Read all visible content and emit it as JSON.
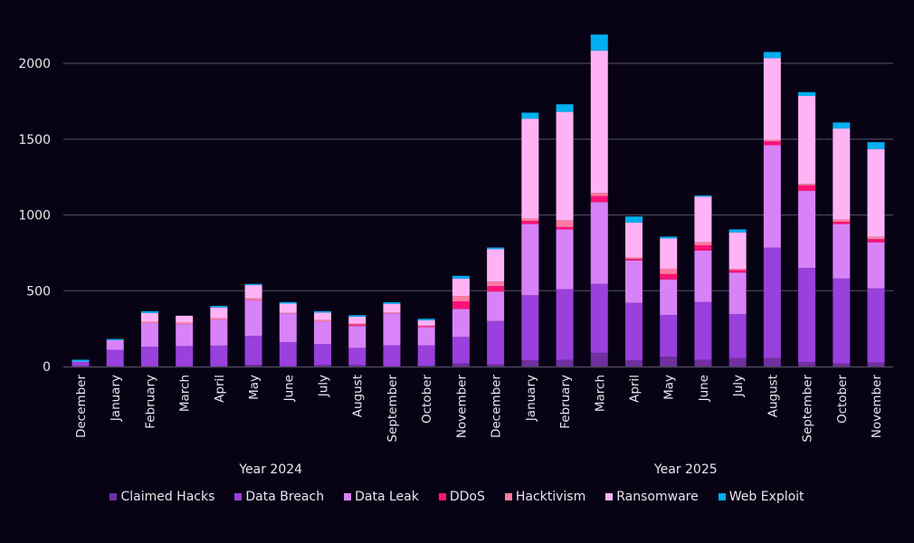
{
  "chart_data": {
    "type": "bar",
    "stacked": true,
    "title": "",
    "xlabel": "",
    "ylabel": "",
    "ylim": [
      0,
      2200
    ],
    "yticks": [
      0,
      500,
      1000,
      1500,
      2000
    ],
    "grid": true,
    "legend_position": "bottom",
    "categories": [
      "December",
      "January",
      "February",
      "March",
      "April",
      "May",
      "June",
      "July",
      "August",
      "September",
      "October",
      "November",
      "December",
      "January",
      "February",
      "March",
      "April",
      "May",
      "June",
      "July",
      "August",
      "September",
      "October",
      "November"
    ],
    "groups": [
      {
        "label": "Year 2024",
        "from": 0,
        "to": 11
      },
      {
        "label": "Year 2025",
        "from": 12,
        "to": 23
      }
    ],
    "series": [
      {
        "name": "Claimed Hacks",
        "color": "#7030a0",
        "values": [
          2,
          0,
          0,
          0,
          0,
          12,
          0,
          8,
          8,
          0,
          5,
          20,
          15,
          40,
          45,
          90,
          40,
          65,
          45,
          55,
          55,
          30,
          20,
          25
        ]
      },
      {
        "name": "Data Breach",
        "color": "#9940dd",
        "values": [
          28,
          110,
          130,
          135,
          138,
          190,
          160,
          140,
          115,
          140,
          135,
          175,
          285,
          430,
          465,
          455,
          380,
          275,
          380,
          290,
          730,
          620,
          560,
          490
        ]
      },
      {
        "name": "Data Leak",
        "color": "#d882f8",
        "values": [
          3,
          62,
          157,
          145,
          170,
          235,
          190,
          150,
          145,
          210,
          120,
          185,
          195,
          470,
          395,
          540,
          280,
          235,
          340,
          275,
          675,
          510,
          360,
          305
        ]
      },
      {
        "name": "DDoS",
        "color": "#ff1278",
        "values": [
          0,
          0,
          0,
          0,
          0,
          0,
          0,
          0,
          8,
          0,
          6,
          50,
          35,
          20,
          15,
          40,
          10,
          35,
          35,
          15,
          25,
          35,
          15,
          20
        ]
      },
      {
        "name": "Hacktivism",
        "color": "#ff7aa2",
        "values": [
          0,
          0,
          8,
          10,
          10,
          12,
          5,
          8,
          8,
          6,
          4,
          35,
          30,
          15,
          45,
          20,
          10,
          35,
          20,
          10,
          10,
          10,
          15,
          15
        ]
      },
      {
        "name": "Ransomware",
        "color": "#ffb3f5",
        "values": [
          0,
          2,
          58,
          45,
          72,
          88,
          60,
          50,
          45,
          58,
          35,
          115,
          215,
          660,
          715,
          940,
          230,
          200,
          300,
          240,
          540,
          580,
          600,
          580
        ]
      },
      {
        "name": "Web Exploit",
        "color": "#00aff0",
        "values": [
          12,
          8,
          12,
          0,
          10,
          8,
          10,
          9,
          10,
          10,
          10,
          18,
          10,
          40,
          50,
          105,
          40,
          12,
          8,
          20,
          40,
          25,
          40,
          45
        ]
      }
    ]
  }
}
